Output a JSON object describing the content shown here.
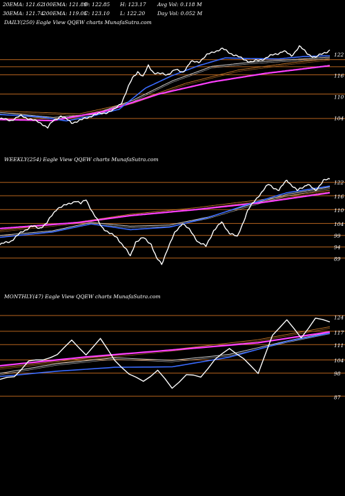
{
  "header": {
    "ema20": "20EMA: 121.62",
    "ema100": "100EMA: 121.89",
    "open": "O: 122.85",
    "high": "H: 123.17",
    "avg_vol": "Avg Vol: 0.118  M",
    "ema30": "30EMA: 121.74",
    "ema200": "200EMA: 119.05",
    "close": "C: 123.10",
    "low": "L: 122.20",
    "day_vol": "Day Vol: 0.052  M"
  },
  "colors": {
    "background": "#000000",
    "price": "#ffffff",
    "ema_fast": "#3a6bff",
    "ema_slow": "#ff40ff",
    "ema_mid": "#cccccc",
    "ema_long": "#c8782a",
    "level_line": "#b8641e"
  },
  "chart_data": [
    {
      "type": "line",
      "panel_label": "DAILY(250) Eagle  View  QQEW charts MunafaSutra.com",
      "ylim": [
        100,
        128
      ],
      "x_count": 250,
      "yticks": [
        122,
        116,
        110,
        104
      ],
      "levels": [
        120.5,
        118.5,
        116.2,
        110.8,
        103.9
      ],
      "series": [
        {
          "role": "price",
          "anchors": [
            [
              0,
              103.8
            ],
            [
              8,
              103.4
            ],
            [
              16,
              104.6
            ],
            [
              24,
              103.6
            ],
            [
              32,
              102.4
            ],
            [
              36,
              101.3
            ],
            [
              40,
              103.1
            ],
            [
              46,
              104.7
            ],
            [
              54,
              102.7
            ],
            [
              62,
              103.5
            ],
            [
              70,
              104.8
            ],
            [
              78,
              105.4
            ],
            [
              86,
              106.2
            ],
            [
              92,
              108.6
            ],
            [
              100,
              115.3
            ],
            [
              104,
              117.2
            ],
            [
              108,
              115.6
            ],
            [
              112,
              118.8
            ],
            [
              116,
              116.9
            ],
            [
              120,
              116.5
            ],
            [
              126,
              116.3
            ],
            [
              132,
              117.6
            ],
            [
              138,
              117.0
            ],
            [
              144,
              119.8
            ],
            [
              150,
              119.9
            ],
            [
              156,
              121.7
            ],
            [
              162,
              122.9
            ],
            [
              168,
              123.5
            ],
            [
              176,
              122.0
            ],
            [
              182,
              120.9
            ],
            [
              190,
              119.8
            ],
            [
              198,
              120.6
            ],
            [
              206,
              121.8
            ],
            [
              214,
              122.9
            ],
            [
              220,
              121.6
            ],
            [
              226,
              124.2
            ],
            [
              232,
              122.3
            ],
            [
              238,
              121.0
            ],
            [
              244,
              122.4
            ],
            [
              249,
              123.1
            ]
          ]
        },
        {
          "role": "ema_fast",
          "anchors": [
            [
              0,
              105.0
            ],
            [
              30,
              104.4
            ],
            [
              50,
              103.2
            ],
            [
              70,
              104.6
            ],
            [
              90,
              106.5
            ],
            [
              110,
              112.5
            ],
            [
              130,
              116.0
            ],
            [
              150,
              118.8
            ],
            [
              170,
              121.0
            ],
            [
              190,
              120.8
            ],
            [
              210,
              120.7
            ],
            [
              230,
              121.4
            ],
            [
              249,
              121.6
            ]
          ]
        },
        {
          "role": "ema_mid",
          "anchors": [
            [
              0,
              105.6
            ],
            [
              40,
              104.2
            ],
            [
              70,
              105.0
            ],
            [
              100,
              109.0
            ],
            [
              130,
              114.5
            ],
            [
              160,
              118.6
            ],
            [
              190,
              119.8
            ],
            [
              220,
              120.5
            ],
            [
              249,
              121.2
            ]
          ]
        },
        {
          "role": "ema_long",
          "anchors": [
            [
              0,
              106.0
            ],
            [
              60,
              105.2
            ],
            [
              100,
              108.5
            ],
            [
              140,
              113.8
            ],
            [
              180,
              117.6
            ],
            [
              220,
              119.6
            ],
            [
              249,
              120.8
            ]
          ]
        },
        {
          "role": "ema_slow",
          "anchors": [
            [
              0,
              103.6
            ],
            [
              40,
              103.3
            ],
            [
              80,
              106.0
            ],
            [
              120,
              110.8
            ],
            [
              160,
              114.2
            ],
            [
              200,
              116.6
            ],
            [
              249,
              118.8
            ]
          ]
        }
      ]
    },
    {
      "type": "line",
      "panel_label": "WEEKLY(254) Eagle  View  QQEW charts MunafaSutra.com",
      "ylim": [
        84,
        127
      ],
      "x_count": 254,
      "yticks": [
        122,
        116,
        110,
        104,
        99,
        94,
        89
      ],
      "levels": [
        122.0,
        116.2,
        110.2,
        104.2,
        99.0,
        94.0,
        89.2
      ],
      "series": [
        {
          "role": "price",
          "anchors": [
            [
              0,
              95.0
            ],
            [
              8,
              96.5
            ],
            [
              16,
              100.1
            ],
            [
              24,
              103.1
            ],
            [
              30,
              102.0
            ],
            [
              36,
              104.5
            ],
            [
              44,
              110.9
            ],
            [
              52,
              112.4
            ],
            [
              58,
              114.1
            ],
            [
              62,
              112.6
            ],
            [
              66,
              114.7
            ],
            [
              72,
              107.9
            ],
            [
              78,
              102.8
            ],
            [
              84,
              99.9
            ],
            [
              90,
              98.0
            ],
            [
              96,
              93.4
            ],
            [
              100,
              90.0
            ],
            [
              104,
              96.3
            ],
            [
              110,
              97.9
            ],
            [
              116,
              95.3
            ],
            [
              120,
              89.2
            ],
            [
              124,
              86.4
            ],
            [
              128,
              92.6
            ],
            [
              134,
              99.9
            ],
            [
              140,
              104.5
            ],
            [
              146,
              100.9
            ],
            [
              152,
              96.3
            ],
            [
              158,
              94.2
            ],
            [
              164,
              101.3
            ],
            [
              170,
              104.6
            ],
            [
              176,
              100.2
            ],
            [
              182,
              98.2
            ],
            [
              190,
              109.8
            ],
            [
              198,
              116.0
            ],
            [
              206,
              121.1
            ],
            [
              214,
              118.5
            ],
            [
              220,
              123.1
            ],
            [
              228,
              118.3
            ],
            [
              236,
              121.4
            ],
            [
              242,
              118.2
            ],
            [
              248,
              123.1
            ],
            [
              253,
              123.1
            ]
          ]
        },
        {
          "role": "ema_fast",
          "anchors": [
            [
              0,
              98.2
            ],
            [
              40,
              100.5
            ],
            [
              70,
              104.0
            ],
            [
              100,
              101.5
            ],
            [
              130,
              102.6
            ],
            [
              160,
              106.8
            ],
            [
              190,
              112.4
            ],
            [
              220,
              117.5
            ],
            [
              253,
              120.4
            ]
          ]
        },
        {
          "role": "ema_mid",
          "anchors": [
            [
              0,
              99.0
            ],
            [
              40,
              101.0
            ],
            [
              70,
              104.6
            ],
            [
              100,
              103.0
            ],
            [
              130,
              103.5
            ],
            [
              160,
              107.0
            ],
            [
              190,
              112.0
            ],
            [
              220,
              116.8
            ],
            [
              253,
              120.0
            ]
          ]
        },
        {
          "role": "ema_long",
          "anchors": [
            [
              0,
              101.2
            ],
            [
              60,
              104.8
            ],
            [
              100,
              108.2
            ],
            [
              150,
              111.0
            ],
            [
              200,
              114.5
            ],
            [
              253,
              118.6
            ]
          ]
        },
        {
          "role": "ema_slow",
          "anchors": [
            [
              0,
              102.0
            ],
            [
              60,
              104.6
            ],
            [
              100,
              107.6
            ],
            [
              150,
              110.2
            ],
            [
              200,
              113.2
            ],
            [
              253,
              117.5
            ]
          ]
        }
      ]
    },
    {
      "type": "line",
      "panel_label": "MONTHLY(47) Eagle  View  QQEW charts MunafaSutra.com",
      "ylim": [
        82,
        128
      ],
      "x_count": 47,
      "yticks": [
        124,
        117,
        111,
        104,
        98,
        87
      ],
      "levels": [
        124.8,
        117.5,
        111.3,
        104.2,
        98.1,
        87.4
      ],
      "series": [
        {
          "role": "price",
          "anchors": [
            [
              0,
              95.2
            ],
            [
              2,
              96.2
            ],
            [
              4,
              103.3
            ],
            [
              6,
              104.4
            ],
            [
              8,
              106.8
            ],
            [
              10,
              114.0
            ],
            [
              12,
              106.2
            ],
            [
              14,
              114.1
            ],
            [
              16,
              103.4
            ],
            [
              18,
              97.9
            ],
            [
              20,
              94.5
            ],
            [
              22,
              99.8
            ],
            [
              24,
              91.0
            ],
            [
              26,
              97.0
            ],
            [
              28,
              96.1
            ],
            [
              30,
              104.4
            ],
            [
              32,
              110.1
            ],
            [
              34,
              104.8
            ],
            [
              36,
              98.1
            ],
            [
              38,
              115.0
            ],
            [
              40,
              122.8
            ],
            [
              42,
              114.3
            ],
            [
              44,
              124.1
            ],
            [
              46,
              122.0
            ]
          ]
        },
        {
          "role": "ema_fast",
          "anchors": [
            [
              0,
              96.5
            ],
            [
              8,
              99.0
            ],
            [
              16,
              100.8
            ],
            [
              24,
              101.0
            ],
            [
              32,
              105.5
            ],
            [
              40,
              112.8
            ],
            [
              46,
              116.6
            ]
          ]
        },
        {
          "role": "ema_mid",
          "anchors": [
            [
              0,
              98.0
            ],
            [
              8,
              102.5
            ],
            [
              16,
              105.2
            ],
            [
              24,
              104.0
            ],
            [
              32,
              106.8
            ],
            [
              40,
              113.0
            ],
            [
              46,
              117.0
            ]
          ]
        },
        {
          "role": "ema_long",
          "anchors": [
            [
              0,
              100.6
            ],
            [
              12,
              105.0
            ],
            [
              24,
              109.0
            ],
            [
              36,
              113.6
            ],
            [
              46,
              119.6
            ]
          ]
        },
        {
          "role": "ema_slow",
          "anchors": [
            [
              0,
              101.5
            ],
            [
              12,
              105.6
            ],
            [
              24,
              108.8
            ],
            [
              36,
              112.2
            ],
            [
              46,
              117.2
            ]
          ]
        }
      ]
    }
  ]
}
